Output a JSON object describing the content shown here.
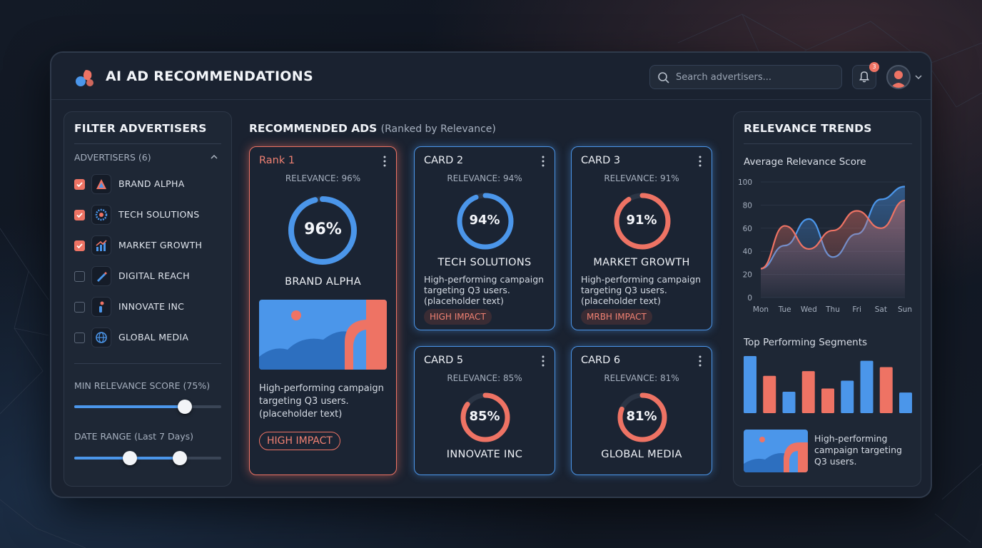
{
  "header": {
    "title": "AI AD RECOMMENDATIONS",
    "search_placeholder": "Search advertisers...",
    "notification_count": "3"
  },
  "colors": {
    "accent_blue": "#4b96ea",
    "accent_coral": "#ee7364",
    "panel_bg": "#1e2735",
    "window_bg": "#1a2230"
  },
  "filters": {
    "title": "FILTER ADVERTISERS",
    "advertisers_label": "ADVERTISERS (6)",
    "advertisers": [
      {
        "label": "BRAND ALPHA",
        "checked": true,
        "icon": "triangle-logo-icon"
      },
      {
        "label": "TECH SOLUTIONS",
        "checked": true,
        "icon": "gear-logo-icon"
      },
      {
        "label": "MARKET GROWTH",
        "checked": true,
        "icon": "growth-chart-icon"
      },
      {
        "label": "DIGITAL REACH",
        "checked": false,
        "icon": "pencil-logo-icon"
      },
      {
        "label": "INNOVATE INC",
        "checked": false,
        "icon": "person-logo-icon"
      },
      {
        "label": "GLOBAL MEDIA",
        "checked": false,
        "icon": "globe-icon"
      }
    ],
    "min_relevance_label": "MIN RELEVANCE SCORE (75%)",
    "min_relevance_value": 0.75,
    "date_range_label": "DATE RANGE (Last 7 Days)",
    "date_range_start": 0.38,
    "date_range_end": 0.72
  },
  "recommended": {
    "title": "RECOMMENDED ADS",
    "subtitle": "(Ranked by Relevance)",
    "cards": [
      {
        "title": "Rank 1",
        "relevance_label": "RELEVANCE: 96%",
        "score": 96,
        "score_label": "96%",
        "name": "BRAND ALPHA",
        "desc": [
          "High-performing campaign",
          "targeting Q3 users.",
          "(placeholder text)"
        ],
        "badge": "HIGH IMPACT",
        "ring_color": "#4b96ea"
      },
      {
        "title": "CARD 2",
        "relevance_label": "RELEVANCE: 94%",
        "score": 94,
        "score_label": "94%",
        "name": "TECH SOLUTIONS",
        "desc": [
          "High-performing campaign",
          "targeting Q3 users.",
          "(placeholder text)"
        ],
        "badge": "HIGH IMPACT",
        "ring_color": "#4b96ea"
      },
      {
        "title": "CARD 3",
        "relevance_label": "RELEVANCE: 91%",
        "score": 91,
        "score_label": "91%",
        "name": "MARKET GROWTH",
        "desc": [
          "High-performing campaign",
          "targeting Q3 users.",
          "(placeholder text)"
        ],
        "badge": "MRBH IMPACT",
        "ring_color": "#ee7364"
      },
      {
        "title": "CARD 5",
        "relevance_label": "RELEVANCE: 85%",
        "score": 85,
        "score_label": "85%",
        "name": "INNOVATE INC",
        "ring_color": "#ee7364"
      },
      {
        "title": "CARD 6",
        "relevance_label": "RELEVANCE: 81%",
        "score": 81,
        "score_label": "81%",
        "name": "GLOBAL MEDIA",
        "ring_color": "#ee7364"
      }
    ]
  },
  "trends": {
    "title": "RELEVANCE TRENDS",
    "line_title": "Average Relevance Score",
    "bar_title": "Top Performing Segments",
    "segment_desc": [
      "High-performing",
      "campaign targeting",
      "Q3 users."
    ]
  },
  "chart_data": [
    {
      "type": "area",
      "title": "Average Relevance Score",
      "categories": [
        "Mon",
        "Tue",
        "Wed",
        "Thu",
        "Fri",
        "Sat",
        "Sun"
      ],
      "ylim": [
        0,
        100
      ],
      "yticks": [
        0,
        20,
        40,
        60,
        80,
        100
      ],
      "series": [
        {
          "color": "#4b96ea",
          "values": [
            25,
            45,
            68,
            35,
            55,
            85,
            96
          ]
        },
        {
          "color": "#ee7364",
          "values": [
            25,
            62,
            42,
            58,
            75,
            60,
            84
          ]
        }
      ]
    },
    {
      "type": "bar",
      "title": "Top Performing Segments",
      "values": [
        72,
        47,
        27,
        53,
        31,
        41,
        66,
        58,
        26
      ],
      "colors": [
        "#4b96ea",
        "#ee7364",
        "#4b96ea",
        "#ee7364",
        "#ee7364",
        "#4b96ea",
        "#4b96ea",
        "#ee7364",
        "#4b96ea"
      ]
    }
  ]
}
